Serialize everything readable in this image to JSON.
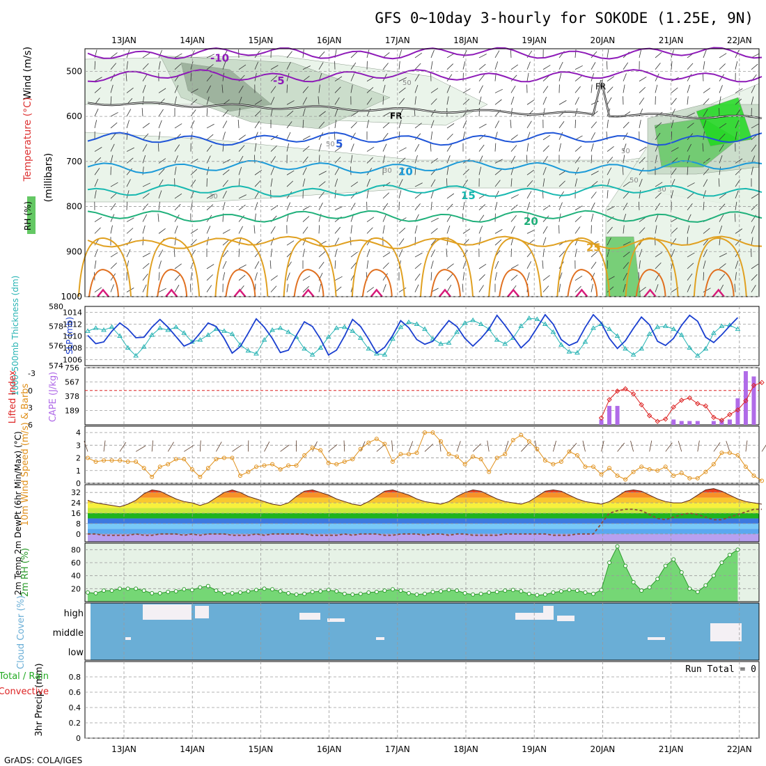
{
  "title": "GFS 0~10day 3-hourly for SOKODE (1.25E, 9N)",
  "footer": "GrADS: COLA/IGES",
  "dates": [
    "13JAN",
    "14JAN",
    "15JAN",
    "16JAN",
    "17JAN",
    "18JAN",
    "19JAN",
    "20JAN",
    "21JAN",
    "22JAN"
  ],
  "colors": {
    "frame": "#000000",
    "grid": "#9a9a9a",
    "rh_light": "#e6f2e6",
    "rh_mid": "#c6d8c6",
    "rh_dark": "#97ab97",
    "rh_green": "#64c864",
    "thickness": "#26b3b3",
    "slp": "#1a3fd0",
    "cape": "#b06be8",
    "lifted_index": "#dd2222",
    "wind10m": "#e0901a",
    "rh2m": "#2a9a2a",
    "cloud_bg": "#6aaed6",
    "cloud_fill": "#f4f0f4",
    "dewpoint": "#8b4a3a"
  },
  "chart_data": [
    {
      "panel": "upper-air",
      "type": "contour",
      "ylabel_parts": [
        "Wind (m/s)",
        "Temperature (°C)",
        "RH (%)"
      ],
      "ylabel_unit": "(millibars)",
      "y_ticks": [
        500,
        600,
        700,
        800,
        900,
        1000
      ],
      "ylim": [
        450,
        1000
      ],
      "freezing_labels": [
        "FR",
        "FR"
      ],
      "temperature_isotherms": [
        {
          "label": "-10",
          "color": "#8e1ab8",
          "pressure": 460
        },
        {
          "label": "-5",
          "color": "#8e1ab8",
          "pressure": 510
        },
        {
          "label": "5",
          "color": "#1f55d8",
          "pressure": 650
        },
        {
          "label": "10",
          "color": "#1b9ad8",
          "pressure": 712
        },
        {
          "label": "15",
          "color": "#17b8b0",
          "pressure": 765
        },
        {
          "label": "20",
          "color": "#1fb07a",
          "pressure": 822
        },
        {
          "label": "25",
          "color": "#e0a020",
          "pressure": 880
        }
      ],
      "rh_contour_labels": [
        "50",
        "30",
        "50",
        "30",
        "50",
        "30",
        "50"
      ]
    },
    {
      "panel": "thickness-slp",
      "type": "line",
      "ylabel": "1000-500mb Thickness (dm)",
      "ylabel2": "SLP (mb)",
      "y_ticks": [
        574,
        576,
        578,
        580
      ],
      "y2_ticks": [
        1006,
        1008,
        1010,
        1012,
        1014
      ],
      "series": [
        {
          "name": "1000-500mb Thickness (dm)",
          "values": [
            577.5,
            577.8,
            577.6,
            577.9,
            577.0,
            575.8,
            575.0,
            575.9,
            577.1,
            577.8,
            577.6,
            577.9,
            577.3,
            576.4,
            576.6,
            577.1,
            577.7,
            577.5,
            577.2,
            576.1,
            575.5,
            575.2,
            576.6,
            577.6,
            577.8,
            577.4,
            576.9,
            575.7,
            575.1,
            575.8,
            576.9,
            577.8,
            577.9,
            577.5,
            576.8,
            575.7,
            575.2,
            575.1,
            576.7,
            577.9,
            578.4,
            578.2,
            577.7,
            576.7,
            576.2,
            576.3,
            577.4,
            578.3,
            578.6,
            578.2,
            577.7,
            576.6,
            576.2,
            576.8,
            578.0,
            578.8,
            578.7,
            578.2,
            577.4,
            576.1,
            575.4,
            575.3,
            576.4,
            577.8,
            578.2,
            577.7,
            577.0,
            575.7,
            575.1,
            575.7,
            577.2,
            577.9,
            578.0,
            577.7,
            577.1,
            575.8,
            575.0,
            575.7,
            577.3,
            578.0,
            578.1,
            577.7
          ]
        },
        {
          "name": "SLP (mb)",
          "values": [
            1010.1,
            1008.7,
            1009.0,
            1010.8,
            1012.2,
            1011.2,
            1009.7,
            1009.8,
            1011.5,
            1012.8,
            1011.5,
            1009.9,
            1008.3,
            1008.9,
            1010.5,
            1012.2,
            1011.6,
            1009.6,
            1007.1,
            1008.2,
            1010.5,
            1012.9,
            1011.5,
            1009.6,
            1007.2,
            1007.6,
            1010.1,
            1012.4,
            1011.6,
            1009.5,
            1006.8,
            1007.6,
            1010.0,
            1012.8,
            1011.6,
            1009.5,
            1007.1,
            1008.1,
            1010.1,
            1012.6,
            1011.4,
            1009.4,
            1008.6,
            1009.1,
            1010.9,
            1012.6,
            1011.6,
            1009.6,
            1008.3,
            1009.6,
            1011.2,
            1013.5,
            1011.8,
            1009.9,
            1008.0,
            1009.3,
            1011.4,
            1013.6,
            1012.0,
            1009.4,
            1008.4,
            1009.0,
            1011.5,
            1013.6,
            1012.2,
            1009.6,
            1007.9,
            1009.2,
            1011.3,
            1013.2,
            1011.9,
            1009.1,
            1008.4,
            1009.6,
            1011.8,
            1013.5,
            1012.5,
            1009.8,
            1008.9,
            1010.2,
            1011.7,
            1013.1
          ]
        }
      ]
    },
    {
      "panel": "instability",
      "type": "bar",
      "ylabel": "Lifted Index",
      "ylabel2": "CAPE (J/kg)",
      "y_ticks": [
        6,
        3,
        0,
        -3
      ],
      "y2_ticks": [
        189,
        378,
        567,
        756
      ],
      "series": [
        {
          "name": "CAPE (J/kg)",
          "values": [
            0,
            0,
            0,
            0,
            0,
            0,
            0,
            0,
            0,
            0,
            0,
            0,
            0,
            0,
            0,
            0,
            0,
            0,
            0,
            0,
            0,
            0,
            0,
            0,
            0,
            0,
            0,
            0,
            0,
            0,
            0,
            0,
            0,
            0,
            0,
            0,
            0,
            0,
            0,
            0,
            0,
            0,
            0,
            0,
            0,
            0,
            0,
            0,
            0,
            0,
            0,
            0,
            0,
            0,
            0,
            0,
            0,
            0,
            0,
            0,
            0,
            0,
            0,
            0,
            70,
            250,
            250,
            0,
            0,
            0,
            0,
            0,
            0,
            70,
            50,
            50,
            50,
            0,
            50,
            60,
            70,
            350,
            710,
            640
          ]
        },
        {
          "name": "Lifted Index",
          "values": [
            null,
            null,
            null,
            null,
            null,
            null,
            null,
            null,
            null,
            null,
            null,
            null,
            null,
            null,
            null,
            null,
            null,
            null,
            null,
            null,
            null,
            null,
            null,
            null,
            null,
            null,
            null,
            null,
            null,
            null,
            null,
            null,
            null,
            null,
            null,
            null,
            null,
            null,
            null,
            null,
            null,
            null,
            null,
            null,
            null,
            null,
            null,
            null,
            null,
            null,
            null,
            null,
            null,
            null,
            null,
            null,
            null,
            null,
            null,
            null,
            null,
            null,
            null,
            null,
            4.8,
            1.6,
            0.1,
            -0.3,
            0.6,
            2.5,
            4.4,
            5.4,
            5.0,
            2.9,
            1.7,
            1.3,
            2.3,
            2.7,
            4.7,
            5.2,
            4.2,
            3.4,
            1.8,
            -0.9,
            -1.4
          ]
        }
      ]
    },
    {
      "panel": "wind10m",
      "type": "line",
      "ylabel": "10m Wind Speed (m/s) & Barbs",
      "y_ticks": [
        0,
        1,
        2,
        3,
        4
      ],
      "ylim": [
        0,
        4.5
      ],
      "series": [
        {
          "name": "10m Wind Speed",
          "values": [
            2.0,
            1.7,
            1.8,
            1.8,
            1.8,
            1.7,
            1.7,
            1.2,
            0.5,
            1.3,
            1.5,
            1.9,
            1.9,
            1.1,
            0.5,
            1.2,
            1.9,
            2.0,
            2.0,
            0.6,
            0.9,
            1.3,
            1.4,
            1.5,
            1.1,
            1.4,
            1.4,
            2.2,
            2.8,
            2.6,
            1.6,
            1.5,
            1.7,
            1.9,
            2.7,
            3.2,
            3.5,
            3.1,
            1.7,
            2.3,
            2.3,
            2.4,
            4.0,
            4.0,
            3.3,
            2.3,
            2.1,
            1.5,
            2.1,
            1.9,
            0.9,
            2.0,
            2.3,
            3.4,
            3.8,
            3.3,
            2.7,
            1.8,
            1.5,
            1.7,
            2.5,
            2.2,
            1.3,
            1.3,
            0.7,
            1.2,
            0.6,
            0.3,
            0.9,
            1.3,
            1.1,
            1.0,
            1.3,
            0.6,
            0.8,
            0.4,
            0.4,
            0.9,
            1.5,
            2.4,
            2.4,
            2.2,
            1.3,
            0.6,
            0.2
          ]
        }
      ]
    },
    {
      "panel": "temperature",
      "type": "area",
      "ylabel": "2m Temp 2m DewPt (6hr Min/Max) (°C)",
      "y_ticks": [
        0,
        8,
        16,
        24,
        32
      ],
      "ylim": [
        -6,
        38
      ],
      "series": [
        {
          "name": "2m Temp",
          "values": [
            26,
            24,
            23,
            22,
            21,
            23,
            26,
            31,
            34,
            33,
            30,
            27,
            25,
            24,
            22,
            24,
            28,
            32,
            34,
            32,
            29,
            27,
            25,
            23,
            22,
            24,
            29,
            33,
            34,
            32,
            30,
            27,
            25,
            23,
            22,
            25,
            29,
            33,
            34,
            32,
            30,
            27,
            25,
            24,
            23,
            25,
            29,
            32,
            34,
            33,
            30,
            27,
            25,
            24,
            23,
            25,
            29,
            33,
            34,
            33,
            30,
            27,
            25,
            24,
            23,
            25,
            29,
            33,
            34,
            33,
            30,
            27,
            25,
            24,
            24,
            26,
            30,
            34,
            35,
            33,
            30,
            27,
            25,
            24,
            23
          ]
        },
        {
          "name": "2m DewPt",
          "values": [
            0,
            0,
            -1,
            -1,
            -1,
            -1,
            0,
            -1,
            -1,
            0,
            0,
            0,
            -1,
            0,
            -1,
            0,
            0,
            0,
            -1,
            -1,
            -1,
            0,
            -1,
            0,
            0,
            0,
            0,
            0,
            -1,
            -1,
            -1,
            -1,
            0,
            -1,
            0,
            0,
            0,
            -1,
            -1,
            0,
            0,
            0,
            -1,
            0,
            0,
            -1,
            0,
            0,
            -1,
            -1,
            -1,
            -1,
            0,
            0,
            0,
            0,
            0,
            0,
            -1,
            -1,
            -1,
            0,
            0,
            0,
            8,
            16,
            18,
            19,
            19,
            18,
            15,
            12,
            11,
            13,
            15,
            16,
            15,
            13,
            11,
            11,
            13,
            15,
            17,
            19,
            19
          ]
        }
      ]
    },
    {
      "panel": "rh2m",
      "type": "line",
      "ylabel": "2m RH (%)",
      "y_ticks": [
        20,
        40,
        60,
        80
      ],
      "ylim": [
        0,
        90
      ],
      "series": [
        {
          "name": "2m RH",
          "values": [
            14,
            13,
            17,
            17,
            20,
            20,
            20,
            17,
            13,
            13,
            15,
            16,
            19,
            18,
            22,
            24,
            17,
            13,
            13,
            14,
            16,
            18,
            20,
            19,
            16,
            13,
            11,
            12,
            15,
            16,
            18,
            16,
            12,
            11,
            12,
            14,
            15,
            17,
            19,
            17,
            13,
            11,
            12,
            15,
            16,
            18,
            17,
            13,
            11,
            12,
            14,
            15,
            17,
            18,
            16,
            12,
            10,
            11,
            14,
            16,
            18,
            17,
            14,
            12,
            18,
            60,
            85,
            55,
            30,
            17,
            22,
            35,
            55,
            65,
            45,
            20,
            15,
            25,
            40,
            60,
            72,
            80
          ]
        }
      ]
    },
    {
      "panel": "cloud",
      "type": "heatmap",
      "ylabel": "Cloud Cover (%)",
      "y_ticks": [
        "high",
        "middle",
        "low"
      ]
    },
    {
      "panel": "precip",
      "type": "bar",
      "ylabel": "3hr Precip (mm)",
      "ylabel_left": [
        "Total / Rain",
        "Convective"
      ],
      "y_ticks": [
        0,
        0.2,
        0.4,
        0.6,
        0.8
      ],
      "ylim": [
        0,
        1
      ],
      "run_total": "Run Total = 0",
      "series": [
        {
          "name": "Total / Rain",
          "values": []
        },
        {
          "name": "Convective",
          "values": []
        }
      ]
    }
  ]
}
